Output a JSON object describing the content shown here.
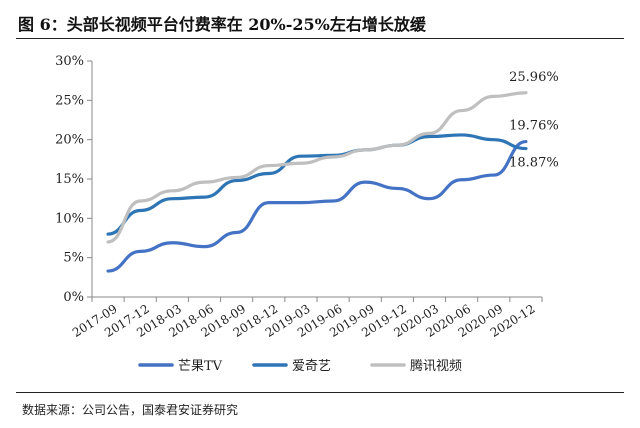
{
  "title": "图 6：头部长视频平台付费率在 20%-25%左右增长放缓",
  "source": "数据来源：公司公告，国泰君安证券研究",
  "chart_data": {
    "type": "line",
    "categories": [
      "2017-09",
      "2017-12",
      "2018-03",
      "2018-06",
      "2018-09",
      "2018-12",
      "2019-03",
      "2019-06",
      "2019-09",
      "2019-12",
      "2020-03",
      "2020-06",
      "2020-09",
      "2020-12"
    ],
    "ylim": [
      0,
      30
    ],
    "yticks": [
      0,
      5,
      10,
      15,
      20,
      25,
      30
    ],
    "ytick_labels": [
      "0%",
      "5%",
      "10%",
      "15%",
      "20%",
      "25%",
      "30%"
    ],
    "xlabel": "",
    "ylabel": "",
    "grid": false,
    "legend_position": "bottom",
    "series": [
      {
        "name": "芒果TV",
        "color": "#4472C4",
        "values": [
          3.3,
          5.8,
          6.9,
          6.4,
          8.2,
          12.0,
          12.0,
          12.2,
          14.6,
          13.8,
          12.5,
          14.9,
          15.5,
          19.76
        ]
      },
      {
        "name": "爱奇艺",
        "color": "#2E75B6",
        "values": [
          8.0,
          11.0,
          12.5,
          12.7,
          14.8,
          15.7,
          17.9,
          18.0,
          18.7,
          19.3,
          20.4,
          20.6,
          20.0,
          18.87
        ]
      },
      {
        "name": "腾讯视频",
        "color": "#BFBFBF",
        "values": [
          7.0,
          12.2,
          13.5,
          14.6,
          15.2,
          16.7,
          17.0,
          17.8,
          18.7,
          19.3,
          20.8,
          23.7,
          25.5,
          25.96
        ]
      }
    ],
    "annotations": [
      {
        "text": "25.96%",
        "series": 2,
        "index": 13,
        "position": "above"
      },
      {
        "text": "19.76%",
        "series": 0,
        "index": 13,
        "position": "above"
      },
      {
        "text": "18.87%",
        "series": 1,
        "index": 13,
        "position": "below"
      }
    ]
  }
}
